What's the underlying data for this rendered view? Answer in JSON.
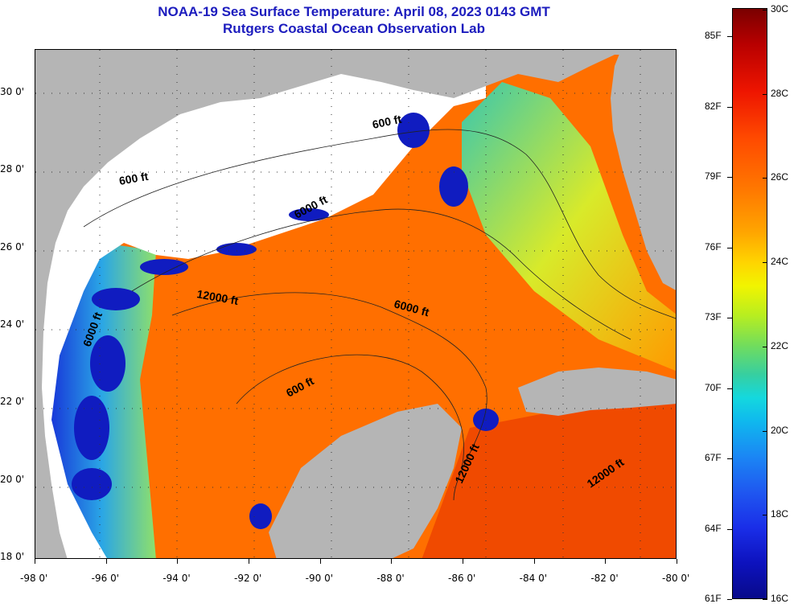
{
  "title": {
    "line1": "NOAA-19 Sea Surface Temperature:  April 08, 2023 0143 GMT",
    "line2": "Rutgers Coastal Ocean Observation Lab"
  },
  "colors": {
    "land": "#b5b5b5",
    "cloud_mask": "#ffffff",
    "warm_water": "#ff6a00",
    "cool_water": "#1f4fe0",
    "title_text": "#1c1cbe"
  },
  "map": {
    "lon_ticks": [
      "-98 0'",
      "-96 0'",
      "-94 0'",
      "-92 0'",
      "-90 0'",
      "-88 0'",
      "-86 0'",
      "-84 0'",
      "-82 0'",
      "-80 0'"
    ],
    "lat_ticks": [
      "30 0'",
      "28 0'",
      "26 0'",
      "24 0'",
      "22 0'",
      "20 0'",
      "18 0'"
    ],
    "contour_labels": [
      "600 ft",
      "600 ft",
      "6000 ft",
      "12000 ft",
      "6000 ft",
      "6000 ft",
      "600 ft",
      "12000 ft",
      "12000 ft"
    ]
  },
  "colorbar": {
    "fahrenheit_labels": [
      "85F",
      "82F",
      "79F",
      "76F",
      "73F",
      "70F",
      "67F",
      "64F",
      "61F"
    ],
    "celsius_labels": [
      "30C",
      "28C",
      "26C",
      "24C",
      "22C",
      "20C",
      "18C",
      "16C"
    ]
  }
}
